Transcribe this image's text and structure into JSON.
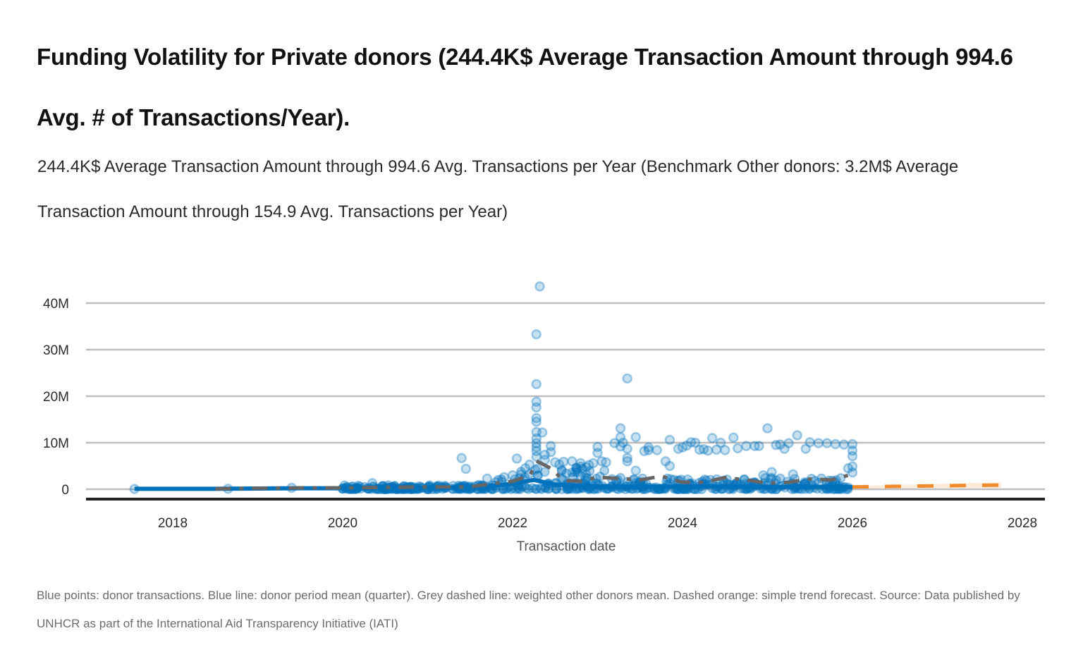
{
  "title": "Funding Volatility for Private donors (244.4K$ Average Transaction Amount through 994.6 Avg. # of Transactions/Year).",
  "subtitle": "244.4K$ Average Transaction Amount through 994.6 Avg. Transactions per Year (Benchmark Other donors: 3.2M$ Average Transaction Amount through 154.9 Avg. Transactions per Year)",
  "footnote": "Blue points: donor transactions. Blue line: donor period mean (quarter). Grey dashed line: weighted other donors mean. Dashed orange: simple trend forecast. Source: Data published by UNHCR as part of the International Aid Transparency Initiative (IATI)",
  "colors": {
    "points": "#0072bc",
    "donor_mean": "#0072bc",
    "other_mean": "#666666",
    "forecast": "#f08c2e",
    "forecast_band": "#fde9d6",
    "grid": "#bdbdbd",
    "baseline": "#222222"
  },
  "chart_data": {
    "type": "scatter",
    "title": "",
    "xlabel": "Transaction date",
    "ylabel": "",
    "xlim": [
      2017.0,
      2028.2
    ],
    "ylim": [
      -2,
      44
    ],
    "x_ticks": [
      2018,
      2020,
      2022,
      2024,
      2026,
      2028
    ],
    "x_tick_labels": [
      "2018",
      "2020",
      "2022",
      "2024",
      "2026",
      "2028"
    ],
    "y_ticks": [
      0,
      10,
      20,
      30,
      40
    ],
    "y_tick_labels": [
      "0",
      "10M",
      "20M",
      "30M",
      "40M"
    ],
    "grid": true,
    "legend": "none",
    "y_unit": "M USD",
    "series": [
      {
        "name": "Donor transactions",
        "kind": "scatter",
        "points": [
          [
            2017.55,
            0.05
          ],
          [
            2018.65,
            0.1
          ],
          [
            2019.4,
            0.3
          ],
          [
            2020.0,
            0.1
          ],
          [
            2020.3,
            0.2
          ],
          [
            2020.35,
            1.3
          ],
          [
            2020.5,
            0.2
          ],
          [
            2020.7,
            0.3
          ],
          [
            2020.8,
            0.5
          ],
          [
            2020.9,
            0.6
          ],
          [
            2021.0,
            0.4
          ],
          [
            2021.1,
            0.6
          ],
          [
            2021.2,
            0.5
          ],
          [
            2021.3,
            0.7
          ],
          [
            2021.4,
            6.7
          ],
          [
            2021.45,
            4.4
          ],
          [
            2021.5,
            0.6
          ],
          [
            2021.6,
            0.9
          ],
          [
            2021.7,
            2.3
          ],
          [
            2021.8,
            1.5
          ],
          [
            2021.9,
            2.6
          ],
          [
            2022.0,
            3.0
          ],
          [
            2022.05,
            6.6
          ],
          [
            2022.1,
            3.2
          ],
          [
            2022.15,
            4.5
          ],
          [
            2022.2,
            5.3
          ],
          [
            2022.28,
            33.3
          ],
          [
            2022.28,
            22.6
          ],
          [
            2022.28,
            18.8
          ],
          [
            2022.28,
            17.6
          ],
          [
            2022.28,
            15.3
          ],
          [
            2022.28,
            14.5
          ],
          [
            2022.28,
            12.3
          ],
          [
            2022.28,
            10.9
          ],
          [
            2022.28,
            9.9
          ],
          [
            2022.28,
            9.0
          ],
          [
            2022.28,
            8.2
          ],
          [
            2022.28,
            7.0
          ],
          [
            2022.32,
            43.6
          ],
          [
            2022.35,
            12.2
          ],
          [
            2022.38,
            7.4
          ],
          [
            2022.38,
            6.3
          ],
          [
            2022.45,
            9.3
          ],
          [
            2022.45,
            8.0
          ],
          [
            2022.5,
            5.8
          ],
          [
            2022.55,
            5.3
          ],
          [
            2022.6,
            5.9
          ],
          [
            2022.7,
            6.0
          ],
          [
            2022.75,
            4.5
          ],
          [
            2022.8,
            5.6
          ],
          [
            2022.9,
            5.2
          ],
          [
            2022.95,
            5.6
          ],
          [
            2023.0,
            9.1
          ],
          [
            2023.0,
            7.8
          ],
          [
            2023.05,
            6.0
          ],
          [
            2023.1,
            5.8
          ],
          [
            2023.2,
            9.9
          ],
          [
            2023.27,
            13.1
          ],
          [
            2023.27,
            11.2
          ],
          [
            2023.27,
            9.2
          ],
          [
            2023.3,
            10.0
          ],
          [
            2023.35,
            23.8
          ],
          [
            2023.35,
            8.7
          ],
          [
            2023.35,
            6.7
          ],
          [
            2023.35,
            6.0
          ],
          [
            2023.45,
            11.2
          ],
          [
            2023.45,
            4.0
          ],
          [
            2023.55,
            8.2
          ],
          [
            2023.6,
            9.0
          ],
          [
            2023.6,
            8.4
          ],
          [
            2023.7,
            8.4
          ],
          [
            2023.8,
            6.0
          ],
          [
            2023.85,
            10.6
          ],
          [
            2023.85,
            5.0
          ],
          [
            2023.9,
            2.0
          ],
          [
            2023.95,
            8.7
          ],
          [
            2024.0,
            9.0
          ],
          [
            2024.05,
            9.4
          ],
          [
            2024.1,
            10.1
          ],
          [
            2024.15,
            10.0
          ],
          [
            2024.2,
            8.5
          ],
          [
            2024.25,
            8.6
          ],
          [
            2024.3,
            8.3
          ],
          [
            2024.35,
            11.0
          ],
          [
            2024.4,
            8.5
          ],
          [
            2024.45,
            10.0
          ],
          [
            2024.5,
            8.4
          ],
          [
            2024.6,
            11.1
          ],
          [
            2024.65,
            8.8
          ],
          [
            2024.75,
            9.3
          ],
          [
            2024.85,
            9.3
          ],
          [
            2024.9,
            9.3
          ],
          [
            2024.95,
            3.0
          ],
          [
            2025.0,
            13.1
          ],
          [
            2025.05,
            3.7
          ],
          [
            2025.1,
            9.5
          ],
          [
            2025.15,
            9.6
          ],
          [
            2025.2,
            8.7
          ],
          [
            2025.25,
            9.9
          ],
          [
            2025.3,
            3.2
          ],
          [
            2025.35,
            11.6
          ],
          [
            2025.45,
            8.7
          ],
          [
            2025.5,
            10.1
          ],
          [
            2025.6,
            9.9
          ],
          [
            2025.7,
            9.9
          ],
          [
            2025.8,
            9.7
          ],
          [
            2025.9,
            9.6
          ],
          [
            2025.95,
            4.5
          ],
          [
            2026.0,
            9.7
          ],
          [
            2026.0,
            8.3
          ],
          [
            2026.0,
            7.1
          ],
          [
            2026.0,
            4.9
          ],
          [
            2026.0,
            3.6
          ]
        ],
        "dense_band": {
          "x_range": [
            2020.0,
            2026.0
          ],
          "y_range": [
            0,
            2.5
          ],
          "note": "hundreds of overlapping transactions near zero"
        }
      },
      {
        "name": "Donor period mean (quarter)",
        "kind": "line",
        "x": [
          2017.55,
          2018.5,
          2019.5,
          2020.5,
          2021.0,
          2021.5,
          2021.8,
          2022.0,
          2022.25,
          2022.5,
          2023.0,
          2023.5,
          2024.0,
          2024.5,
          2025.0,
          2025.5,
          2026.0
        ],
        "y": [
          0.1,
          0.1,
          0.2,
          0.2,
          0.3,
          0.4,
          0.8,
          1.2,
          2.0,
          1.0,
          0.6,
          0.5,
          0.6,
          0.6,
          0.5,
          0.5,
          0.5
        ]
      },
      {
        "name": "Weighted other donors mean",
        "kind": "line-dashed",
        "x": [
          2018.5,
          2019.0,
          2019.5,
          2020.0,
          2020.5,
          2021.0,
          2021.5,
          2021.75,
          2022.0,
          2022.2,
          2022.3,
          2022.45,
          2022.6,
          2022.8,
          2023.0,
          2023.25,
          2023.5,
          2023.75,
          2024.0,
          2024.25,
          2024.5,
          2024.75,
          2025.0,
          2025.25,
          2025.5,
          2025.75,
          2025.95
        ],
        "y": [
          0.1,
          0.2,
          0.3,
          0.3,
          0.4,
          0.5,
          0.5,
          1.2,
          1.7,
          3.0,
          5.9,
          4.5,
          1.9,
          1.7,
          2.6,
          2.3,
          2.0,
          2.8,
          1.5,
          1.5,
          2.5,
          2.0,
          1.3,
          1.5,
          2.2,
          2.0,
          3.0
        ]
      },
      {
        "name": "Simple trend forecast",
        "kind": "line-dashed",
        "x": [
          2026.0,
          2027.75
        ],
        "y": [
          0.5,
          0.9
        ],
        "band": {
          "lower": [
            0.2,
            0.3
          ],
          "upper": [
            0.7,
            1.5
          ]
        }
      }
    ]
  }
}
